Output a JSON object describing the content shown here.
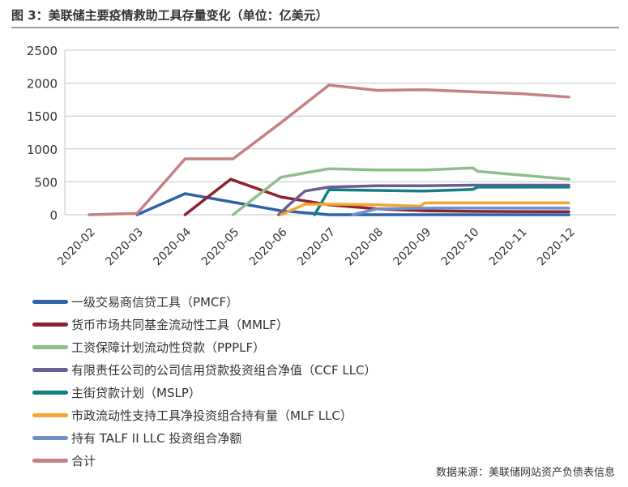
{
  "title": "图 3：美联储主要疫情救助工具存量变化（单位：亿美元）",
  "source": "数据来源：美联储网站资产负债表信息",
  "chart_data": {
    "type": "line",
    "title": "图 3：美联储主要疫情救助工具存量变化（单位：亿美元）",
    "xlabel": "",
    "ylabel": "",
    "categories": [
      "2020-02",
      "2020-03",
      "2020-04",
      "2020-05",
      "2020-06",
      "2020-07",
      "2020-08",
      "2020-09",
      "2020-10",
      "2020-11",
      "2020-12"
    ],
    "yticks": [
      "0",
      "500",
      "1000",
      "1500",
      "2000",
      "2500"
    ],
    "ylim": [
      0,
      2500
    ],
    "grid": "horizontal",
    "legend_position": "bottom",
    "series": [
      {
        "name": "一级交易商信贷工具（PMCF）",
        "color": "#2e63a8",
        "points": [
          [
            1,
            0
          ],
          [
            2,
            320
          ],
          [
            4,
            60
          ],
          [
            5,
            0
          ],
          [
            10,
            0
          ]
        ]
      },
      {
        "name": "货币市场共同基金流动性工具（MMLF）",
        "color": "#8b2231",
        "points": [
          [
            2,
            0
          ],
          [
            2.95,
            540
          ],
          [
            4,
            270
          ],
          [
            5,
            150
          ],
          [
            6,
            90
          ],
          [
            7,
            60
          ],
          [
            8,
            50
          ],
          [
            10,
            45
          ]
        ]
      },
      {
        "name": "工资保障计划流动性贷款（PPPLF）",
        "color": "#8fbe8a",
        "points": [
          [
            3,
            0
          ],
          [
            4,
            570
          ],
          [
            5,
            700
          ],
          [
            6,
            680
          ],
          [
            7,
            680
          ],
          [
            8,
            710
          ],
          [
            8.1,
            660
          ],
          [
            10,
            540
          ]
        ]
      },
      {
        "name": "有限责任公司的公司信用贷款投资组合净值（CCF LLC）",
        "color": "#6b5c93",
        "points": [
          [
            3.95,
            0
          ],
          [
            4.15,
            140
          ],
          [
            4.5,
            360
          ],
          [
            5,
            420
          ],
          [
            6,
            440
          ],
          [
            7,
            440
          ],
          [
            8,
            450
          ],
          [
            10,
            450
          ]
        ]
      },
      {
        "name": "主街贷款计划（MSLP）",
        "color": "#127f84",
        "points": [
          [
            4.7,
            0
          ],
          [
            5,
            380
          ],
          [
            6,
            370
          ],
          [
            7,
            360
          ],
          [
            8,
            385
          ],
          [
            8.1,
            420
          ],
          [
            10,
            420
          ]
        ]
      },
      {
        "name": "市政流动性支持工具净投资组合持有量（MLF LLC）",
        "color": "#f3a531",
        "points": [
          [
            4,
            0
          ],
          [
            4.5,
            160
          ],
          [
            5,
            160
          ],
          [
            6,
            150
          ],
          [
            6.9,
            130
          ],
          [
            7,
            180
          ],
          [
            10,
            180
          ]
        ]
      },
      {
        "name": "持有 TALF II LLC 投资组合净额",
        "color": "#6f8fc7",
        "points": [
          [
            5.5,
            0
          ],
          [
            6,
            90
          ],
          [
            7,
            100
          ],
          [
            8,
            100
          ],
          [
            10,
            100
          ]
        ]
      },
      {
        "name": "合计",
        "color": "#c48083",
        "points": [
          [
            0,
            0
          ],
          [
            1,
            20
          ],
          [
            2,
            850
          ],
          [
            3,
            850
          ],
          [
            4,
            1400
          ],
          [
            5,
            1970
          ],
          [
            6,
            1890
          ],
          [
            7,
            1900
          ],
          [
            8,
            1870
          ],
          [
            9,
            1840
          ],
          [
            10,
            1790
          ]
        ]
      }
    ]
  }
}
